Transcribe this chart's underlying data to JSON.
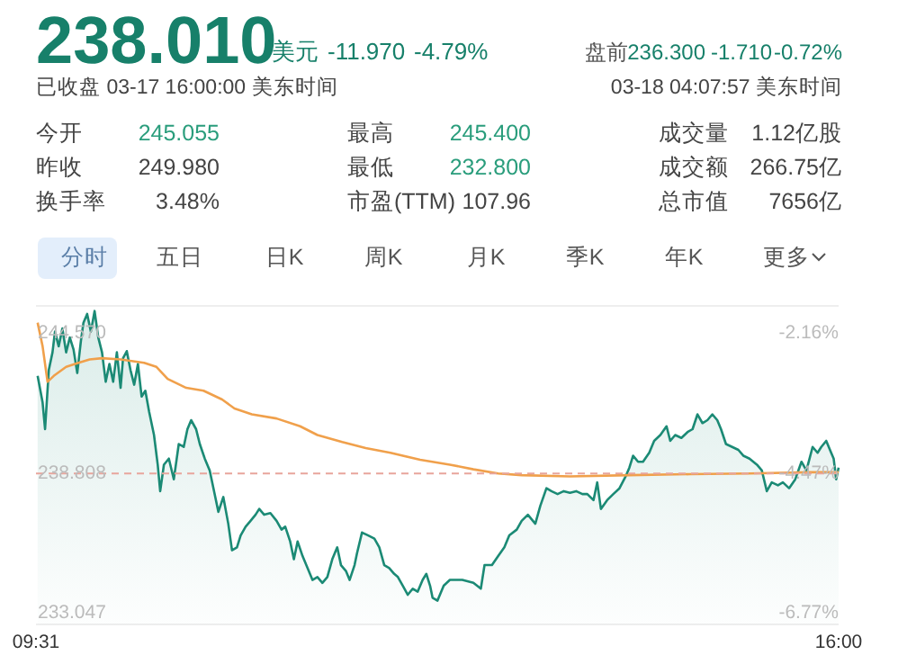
{
  "chart_data": [
    {
      "type": "other",
      "title": "238.010",
      "annotations": [
        "美元",
        "-11.970",
        "-4.79%",
        "盘前",
        "236.300",
        "-1.710",
        "-0.72%",
        "已收盘 03-17 16:00:00 美东时间",
        "03-18 04:07:57 美东时间",
        "今开",
        "245.055",
        "最高",
        "245.400",
        "成交量",
        "1.12亿股",
        "昨收",
        "249.980",
        "最低",
        "232.800",
        "成交额",
        "266.75亿",
        "换手率",
        "3.48%",
        "市盈(TTM)",
        "107.96",
        "总市值",
        "7656亿",
        "分时",
        "五日",
        "日K",
        "周K",
        "月K",
        "季K",
        "年K",
        "更多"
      ]
    },
    {
      "type": "line",
      "xlim": [
        9.5167,
        16
      ],
      "xticks": [
        {
          "value": 9.5167,
          "label": "09:31"
        },
        {
          "value": 16,
          "label": "16:00"
        }
      ],
      "ylim": [
        232.6,
        245.7
      ],
      "yticks": [
        {
          "value": 244.57,
          "label": "244.570"
        },
        {
          "value": 238.808,
          "label": "238.808"
        },
        {
          "value": 233.047,
          "label": "233.047"
        }
      ],
      "y2lim": [
        -6.95,
        -1.71
      ],
      "y2ticks": [
        {
          "value": -2.16,
          "label": "-2.16%"
        },
        {
          "value": -4.47,
          "label": "-4.47%"
        },
        {
          "value": -6.77,
          "label": "-6.77%"
        }
      ],
      "grid": false,
      "ref_lines": [
        {
          "axis": "y",
          "value": 238.808,
          "color": "#e8a59c",
          "line_style": "dashed"
        }
      ],
      "series": [
        {
          "type": "area",
          "color": "#1b8a75",
          "x": [
            9.53,
            9.57,
            9.59,
            9.62,
            9.65,
            9.67,
            9.7,
            9.73,
            9.76,
            9.79,
            9.82,
            9.85,
            9.88,
            9.9,
            9.93,
            9.96,
            9.99,
            10.02,
            10.05,
            10.08,
            10.11,
            10.14,
            10.17,
            10.2,
            10.22,
            10.25,
            10.28,
            10.31,
            10.34,
            10.37,
            10.4,
            10.43,
            10.47,
            10.5,
            10.52,
            10.55,
            10.59,
            10.63,
            10.67,
            10.71,
            10.74,
            10.77,
            10.81,
            10.84,
            10.88,
            10.92,
            10.96,
            10.99,
            11.03,
            11.07,
            11.1,
            11.14,
            11.17,
            11.21,
            11.25,
            11.29,
            11.32,
            11.36,
            11.41,
            11.46,
            11.5,
            11.53,
            11.57,
            11.6,
            11.63,
            11.67,
            11.71,
            11.75,
            11.79,
            11.83,
            11.87,
            11.91,
            11.95,
            11.98,
            12.02,
            12.05,
            12.09,
            12.11,
            12.15,
            12.2,
            12.25,
            12.29,
            12.33,
            12.37,
            12.41,
            12.44,
            12.48,
            12.52,
            12.56,
            12.6,
            12.64,
            12.67,
            12.7,
            12.72,
            12.76,
            12.81,
            12.86,
            12.96,
            13.05,
            13.11,
            13.14,
            13.2,
            13.25,
            13.3,
            13.34,
            13.4,
            13.44,
            13.49,
            13.55,
            13.59,
            13.64,
            13.68,
            13.73,
            13.78,
            13.83,
            13.88,
            13.93,
            13.97,
            14.02,
            14.05,
            14.08,
            14.13,
            14.18,
            14.23,
            14.28,
            14.31,
            14.34,
            14.38,
            14.42,
            14.47,
            14.51,
            14.56,
            14.61,
            14.64,
            14.68,
            14.73,
            14.78,
            14.82,
            14.86,
            14.9,
            14.94,
            14.98,
            15.02,
            15.05,
            15.09,
            15.14,
            15.19,
            15.23,
            15.28,
            15.34,
            15.38,
            15.42,
            15.46,
            15.51,
            15.55,
            15.6,
            15.65,
            15.7,
            15.74,
            15.79,
            15.83,
            15.86,
            15.9,
            15.94,
            15.96,
            15.98,
            16.0
          ],
          "values": [
            242.82,
            241.73,
            240.63,
            243.06,
            243.79,
            244.64,
            244.04,
            244.77,
            243.79,
            244.4,
            243.91,
            242.94,
            244.28,
            245.01,
            245.37,
            244.64,
            245.49,
            244.4,
            243.79,
            242.58,
            243.31,
            242.58,
            243.79,
            242.33,
            243.55,
            243.84,
            243.06,
            242.46,
            243.31,
            241.97,
            242.21,
            241.36,
            240.39,
            239.17,
            238.08,
            239.17,
            239.42,
            238.57,
            240.02,
            239.9,
            240.63,
            241.0,
            240.63,
            240.02,
            239.42,
            238.93,
            237.96,
            237.23,
            237.84,
            236.74,
            235.65,
            235.77,
            236.26,
            236.62,
            236.86,
            237.11,
            237.35,
            237.11,
            237.18,
            236.86,
            236.5,
            236.62,
            236.01,
            235.28,
            236.01,
            235.41,
            234.92,
            234.43,
            234.55,
            234.31,
            234.55,
            235.28,
            235.77,
            235.04,
            234.8,
            234.43,
            235.04,
            235.53,
            236.38,
            236.26,
            236.13,
            235.77,
            235.04,
            234.92,
            234.68,
            234.55,
            234.19,
            233.82,
            234.07,
            233.95,
            234.43,
            234.68,
            234.19,
            233.7,
            233.58,
            234.19,
            234.43,
            234.43,
            234.31,
            234.07,
            235.04,
            235.04,
            235.41,
            235.77,
            236.26,
            236.5,
            236.86,
            237.11,
            236.74,
            237.47,
            238.2,
            238.08,
            237.96,
            238.08,
            238.01,
            238.08,
            237.96,
            237.96,
            237.71,
            238.44,
            237.35,
            237.71,
            237.96,
            238.2,
            238.69,
            239.05,
            239.54,
            239.29,
            239.29,
            239.66,
            240.15,
            240.39,
            240.75,
            240.15,
            240.39,
            240.27,
            240.51,
            240.63,
            241.24,
            240.88,
            241.0,
            241.24,
            241.0,
            240.63,
            240.02,
            239.9,
            239.78,
            239.54,
            239.42,
            239.17,
            238.93,
            238.08,
            238.44,
            238.32,
            238.44,
            238.2,
            238.57,
            239.29,
            238.93,
            239.9,
            239.66,
            239.9,
            240.15,
            239.66,
            239.42,
            238.57,
            239.05
          ]
        },
        {
          "type": "line",
          "color": "#f0a04b",
          "x": [
            9.53,
            9.57,
            9.61,
            9.66,
            9.76,
            9.86,
            9.95,
            10.05,
            10.2,
            10.39,
            10.49,
            10.58,
            10.73,
            10.87,
            11.02,
            11.12,
            11.26,
            11.46,
            11.65,
            11.79,
            11.99,
            12.18,
            12.38,
            12.62,
            12.86,
            13.05,
            13.25,
            13.44,
            13.83,
            14.31,
            14.8,
            15.28,
            15.77,
            16.0
          ],
          "values": [
            245.01,
            244.04,
            242.58,
            242.82,
            243.19,
            243.36,
            243.5,
            243.55,
            243.5,
            243.36,
            243.19,
            242.7,
            242.33,
            242.21,
            241.85,
            241.48,
            241.24,
            241.07,
            240.75,
            240.39,
            240.1,
            239.85,
            239.66,
            239.37,
            239.17,
            238.98,
            238.81,
            238.74,
            238.69,
            238.74,
            238.78,
            238.81,
            238.86,
            238.86
          ]
        }
      ]
    }
  ]
}
